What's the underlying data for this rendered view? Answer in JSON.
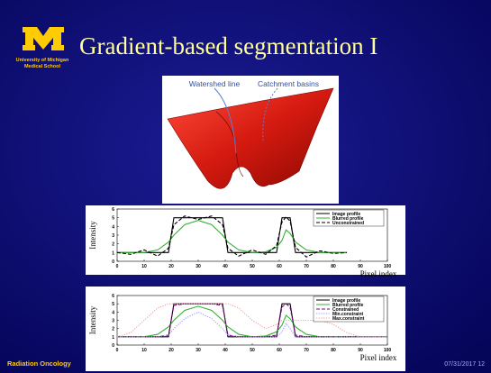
{
  "header": {
    "title": "Gradient-based segmentation I",
    "logo_line1": "University of Michigan",
    "logo_line2": "Medical School"
  },
  "figure": {
    "label_left": "Watershed line",
    "label_right": "Catchment basins"
  },
  "chart_data": [
    {
      "type": "line",
      "ylabel": "Intensity",
      "xlabel": "Pixel index",
      "xlim": [
        0,
        100
      ],
      "ylim": [
        0,
        6
      ],
      "xticks": [
        0,
        10,
        20,
        30,
        40,
        50,
        60,
        70,
        80,
        90,
        100
      ],
      "yticks": [
        0,
        1,
        2,
        3,
        4,
        5,
        6
      ],
      "legend": "top-right",
      "x": [
        0,
        5,
        10,
        15,
        19,
        21,
        25,
        30,
        35,
        39,
        41,
        45,
        50,
        55,
        59,
        61,
        62.5,
        64,
        66,
        70,
        75,
        80,
        85
      ],
      "series": [
        {
          "name": "Image profile",
          "color": "#000000",
          "style": "solid",
          "values": [
            1,
            1,
            1,
            1,
            1,
            5,
            5,
            5,
            5,
            5,
            1,
            1,
            1,
            1,
            1,
            5,
            5,
            5,
            1,
            1,
            1,
            1,
            1
          ]
        },
        {
          "name": "Blurred profile",
          "color": "#33b033",
          "style": "solid",
          "values": [
            1,
            1,
            1,
            1.3,
            2.2,
            3,
            4.2,
            4.7,
            4.2,
            3,
            2.2,
            1.3,
            1,
            1.1,
            1.6,
            2.4,
            3.6,
            3.2,
            2.2,
            1.3,
            1,
            1,
            1
          ]
        },
        {
          "name": "Unconstrained",
          "color": "#000000",
          "style": "dashed",
          "values": [
            1,
            0.8,
            1.3,
            0.6,
            1.5,
            4.2,
            5.2,
            4.8,
            5.2,
            4.2,
            1.5,
            0.6,
            1.3,
            0.8,
            1.8,
            4.5,
            5.1,
            4.6,
            1.6,
            0.5,
            1.2,
            0.9,
            1
          ]
        }
      ]
    },
    {
      "type": "line",
      "ylabel": "Intensity",
      "xlabel": "Pixel index",
      "xlim": [
        0,
        100
      ],
      "ylim": [
        0,
        6
      ],
      "xticks": [
        0,
        10,
        20,
        30,
        40,
        50,
        60,
        70,
        80,
        90,
        100
      ],
      "yticks": [
        0,
        1,
        2,
        3,
        4,
        5,
        6
      ],
      "legend": "top-right",
      "x": [
        0,
        5,
        10,
        15,
        19,
        21,
        25,
        30,
        35,
        39,
        41,
        45,
        50,
        55,
        59,
        61,
        62.5,
        64,
        66,
        70,
        75,
        80,
        85,
        90,
        95,
        100
      ],
      "series": [
        {
          "name": "Image profile",
          "color": "#000000",
          "style": "solid",
          "values": [
            1,
            1,
            1,
            1,
            1,
            5,
            5,
            5,
            5,
            5,
            1,
            1,
            1,
            1,
            1,
            5,
            5,
            5,
            1,
            1,
            1,
            1,
            1,
            1,
            1,
            1
          ]
        },
        {
          "name": "Blurred profile",
          "color": "#33b033",
          "style": "solid",
          "values": [
            1,
            1,
            1,
            1.3,
            2.2,
            3,
            4.2,
            4.7,
            4.2,
            3,
            2.2,
            1.3,
            1,
            1.1,
            1.6,
            2.4,
            3.6,
            3.2,
            2.2,
            1.3,
            1,
            1,
            1,
            1,
            1,
            1
          ]
        },
        {
          "name": "Constrained",
          "color": "#800080",
          "style": "dashed",
          "values": [
            1,
            1,
            1,
            1,
            1.2,
            4.8,
            5,
            5,
            5,
            4.8,
            1.2,
            1,
            1,
            1,
            1.2,
            4.6,
            5,
            4.6,
            1.2,
            1,
            1,
            1,
            1,
            1,
            1,
            1
          ]
        },
        {
          "name": "Min.constraint",
          "color": "#9999ff",
          "style": "dotted",
          "values": [
            1,
            1,
            1,
            1,
            1.2,
            2,
            3.2,
            4,
            3.2,
            2,
            1.2,
            1,
            1,
            1,
            1,
            1.6,
            2.6,
            2,
            1,
            1,
            1,
            1,
            1,
            1,
            1,
            1
          ]
        },
        {
          "name": "Max.constraint",
          "color": "#ff9999",
          "style": "dotted",
          "values": [
            1,
            1.5,
            3,
            4.5,
            5,
            5,
            5,
            5,
            5,
            5,
            5,
            4.5,
            3,
            2,
            2.5,
            3,
            3,
            3,
            3,
            3,
            3,
            2.5,
            1.5,
            1,
            1,
            1
          ]
        }
      ]
    }
  ],
  "footer": {
    "left": "Radiation Oncology",
    "right": "07/31/2017 12"
  }
}
